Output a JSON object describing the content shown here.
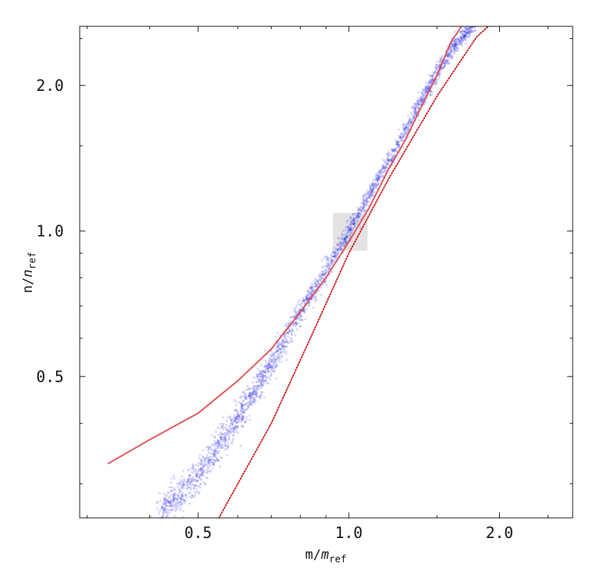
{
  "chart_data": {
    "type": "scatter",
    "title": "",
    "xlabel": {
      "main": "m/",
      "sym": "m",
      "sub": "ref"
    },
    "ylabel": {
      "main": "n/",
      "sym": "n",
      "sub": "ref"
    },
    "x_scale": "log",
    "y_scale": "log",
    "xlim": [
      0.29,
      2.8
    ],
    "ylim": [
      0.255,
      2.65
    ],
    "x_ticks": [
      {
        "value": 0.5,
        "label": "0.5"
      },
      {
        "value": 1.0,
        "label": "1.0"
      },
      {
        "value": 2.0,
        "label": "2.0"
      }
    ],
    "y_ticks": [
      {
        "value": 0.5,
        "label": "0.5"
      },
      {
        "value": 1.0,
        "label": "1.0"
      },
      {
        "value": 2.0,
        "label": "2.0"
      }
    ],
    "x_minor_ticks": [
      0.3,
      0.4,
      0.6,
      0.7,
      0.8,
      0.9,
      1.5,
      2.5
    ],
    "y_minor_ticks": [
      0.3,
      0.4,
      0.6,
      0.7,
      0.8,
      0.9,
      1.5,
      2.5
    ],
    "shaded_region": {
      "x": [
        0.93,
        1.09
      ],
      "y": [
        0.91,
        1.09
      ],
      "color": "#e3e3e3"
    },
    "series": [
      {
        "type": "scatter",
        "color": "#2222ee",
        "band_width_log": 0.018,
        "x": [
          0.42,
          0.45,
          0.5,
          0.55,
          0.6,
          0.65,
          0.7,
          0.75,
          0.8,
          0.85,
          0.9,
          0.95,
          1.0,
          1.05,
          1.1,
          1.2,
          1.3,
          1.4,
          1.5,
          1.6,
          1.7,
          1.78
        ],
        "y": [
          0.26,
          0.28,
          0.31,
          0.36,
          0.41,
          0.47,
          0.53,
          0.6,
          0.68,
          0.75,
          0.83,
          0.91,
          1.0,
          1.09,
          1.19,
          1.39,
          1.62,
          1.87,
          2.12,
          2.36,
          2.55,
          2.65
        ]
      },
      {
        "type": "line",
        "style": "solid",
        "color": "#e24a4a",
        "x": [
          0.33,
          0.4,
          0.5,
          0.6,
          0.7,
          0.8,
          0.9,
          1.0,
          1.1,
          1.2,
          1.3,
          1.4,
          1.5,
          1.6,
          1.68
        ],
        "y": [
          0.33,
          0.37,
          0.42,
          0.49,
          0.57,
          0.68,
          0.8,
          0.95,
          1.12,
          1.34,
          1.55,
          1.82,
          2.1,
          2.46,
          2.65
        ]
      },
      {
        "type": "line",
        "style": "dotted",
        "color": "#cc1111",
        "x": [
          0.55,
          0.7,
          0.85,
          1.0,
          1.2,
          1.5,
          1.8,
          1.9
        ],
        "y": [
          0.255,
          0.4,
          0.62,
          0.9,
          1.28,
          1.9,
          2.52,
          2.65
        ]
      }
    ]
  }
}
